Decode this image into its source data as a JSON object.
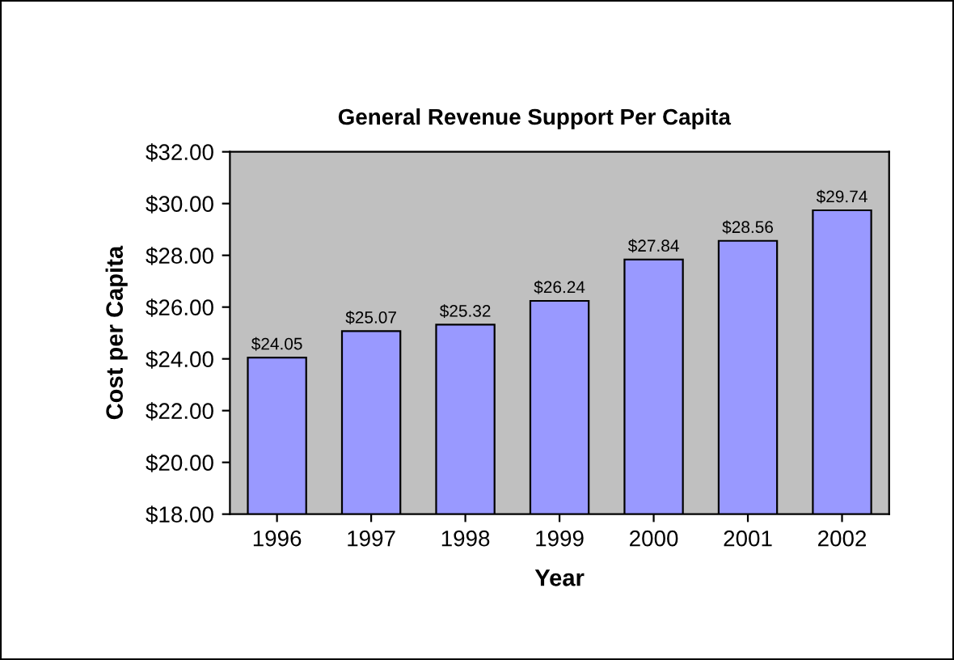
{
  "chart_data": {
    "type": "bar",
    "title": "General Revenue Support Per Capita",
    "xlabel": "Year",
    "ylabel": "Cost per Capita",
    "categories": [
      "1996",
      "1997",
      "1998",
      "1999",
      "2000",
      "2001",
      "2002"
    ],
    "values": [
      24.05,
      25.07,
      25.32,
      26.24,
      27.84,
      28.56,
      29.74
    ],
    "value_labels": [
      "$24.05",
      "$25.07",
      "$25.32",
      "$26.24",
      "$27.84",
      "$28.56",
      "$29.74"
    ],
    "color": "#9999ff",
    "ylim": [
      18,
      32
    ],
    "yticks": [
      {
        "value": 18,
        "label": "$18.00"
      },
      {
        "value": 20,
        "label": "$20.00"
      },
      {
        "value": 22,
        "label": "$22.00"
      },
      {
        "value": 24,
        "label": "$24.00"
      },
      {
        "value": 26,
        "label": "$26.00"
      },
      {
        "value": 28,
        "label": "$28.00"
      },
      {
        "value": 30,
        "label": "$30.00"
      },
      {
        "value": 32,
        "label": "$32.00"
      }
    ],
    "grid": false,
    "legend": false
  }
}
